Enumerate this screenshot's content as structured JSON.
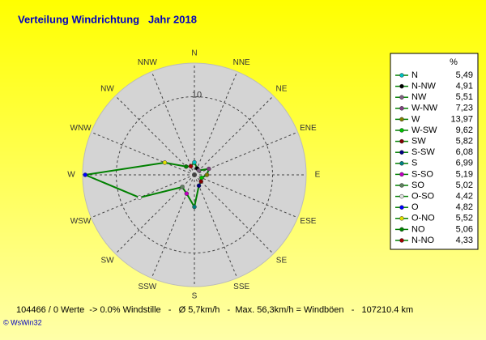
{
  "chart_data": {
    "type": "radar",
    "title": "Verteilung Windrichtung   Jahr 2018",
    "categories": [
      "N",
      "NNE",
      "NE",
      "ENE",
      "E",
      "ESE",
      "SE",
      "SSE",
      "S",
      "SSW",
      "SW",
      "WSW",
      "W",
      "WNW",
      "NW",
      "NNW"
    ],
    "values": [
      1.6,
      0.9,
      0.8,
      2,
      1.6,
      1,
      1.2,
      1.5,
      4.1,
      2.6,
      2.2,
      7.6,
      13.97,
      4.1,
      1.5,
      1.2
    ],
    "color": "#008000",
    "rlim": [
      0,
      14.3
    ],
    "rticks": [
      10
    ],
    "grid": true,
    "legend": {
      "header": "%",
      "names": [
        "N",
        "N-NW",
        "NW",
        "W-NW",
        "W",
        "W-SW",
        "SW",
        "S-SW",
        "S",
        "S-SO",
        "SO",
        "O-SO",
        "O",
        "O-NO",
        "NO",
        "N-NO"
      ],
      "colors": [
        "#00c0c0",
        "#000000",
        "#806080",
        "#804080",
        "#808000",
        "#00c000",
        "#800000",
        "#000080",
        "#008080",
        "#c000c0",
        "#608060",
        "#e0e0e0",
        "#0000ff",
        "#e0e000",
        "#008000",
        "#a00000"
      ],
      "values": [
        5.49,
        4.91,
        5.51,
        7.23,
        13.97,
        9.62,
        5.82,
        6.08,
        6.99,
        5.19,
        5.02,
        4.42,
        4.82,
        5.52,
        5.06,
        4.33
      ],
      "value_labels": [
        "5,49",
        "4,91",
        "5,51",
        "7,23",
        "13,97",
        "9,62",
        "5,82",
        "6,08",
        "6,99",
        "5,19",
        "5,02",
        "4,42",
        "4,82",
        "5,52",
        "5,06",
        "4,33"
      ]
    }
  },
  "footer": "104466 / 0 Werte  -> 0.0% Windstille   -   Ø 5,7km/h   -  Max. 56,3km/h = Windböen   -   107210.4 km",
  "copyright": "© WsWin32"
}
